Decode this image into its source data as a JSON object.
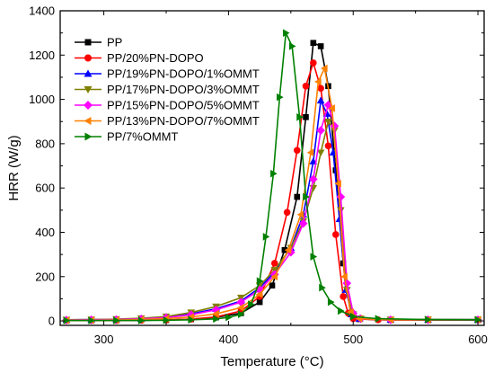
{
  "chart_data": {
    "type": "line",
    "title": "",
    "xlabel": "Temperature (°C)",
    "ylabel": "HRR (W/g)",
    "xlim": [
      265,
      605
    ],
    "ylim": [
      -20,
      1400
    ],
    "xticks": [
      300,
      400,
      500,
      600
    ],
    "yticks": [
      0,
      200,
      400,
      600,
      800,
      1000,
      1200,
      1400
    ],
    "grid": false,
    "legend_position": "top-left",
    "series": [
      {
        "name": "PP",
        "color": "#000000",
        "marker": "square",
        "points": [
          [
            270,
            3
          ],
          [
            290,
            3
          ],
          [
            310,
            3
          ],
          [
            330,
            3
          ],
          [
            350,
            4
          ],
          [
            370,
            8
          ],
          [
            390,
            16
          ],
          [
            410,
            35
          ],
          [
            425,
            85
          ],
          [
            435,
            160
          ],
          [
            445,
            320
          ],
          [
            455,
            560
          ],
          [
            462,
            920
          ],
          [
            468,
            1255
          ],
          [
            474,
            1240
          ],
          [
            480,
            1060
          ],
          [
            486,
            680
          ],
          [
            492,
            260
          ],
          [
            498,
            30
          ],
          [
            505,
            8
          ],
          [
            530,
            4
          ],
          [
            560,
            4
          ],
          [
            600,
            4
          ]
        ]
      },
      {
        "name": "PP/20%PN-DOPO",
        "color": "#ff0000",
        "marker": "circle",
        "points": [
          [
            270,
            2
          ],
          [
            290,
            2
          ],
          [
            310,
            2
          ],
          [
            330,
            3
          ],
          [
            350,
            4
          ],
          [
            370,
            8
          ],
          [
            390,
            18
          ],
          [
            410,
            45
          ],
          [
            425,
            110
          ],
          [
            437,
            260
          ],
          [
            447,
            490
          ],
          [
            455,
            770
          ],
          [
            462,
            1060
          ],
          [
            468,
            1165
          ],
          [
            474,
            1050
          ],
          [
            480,
            790
          ],
          [
            486,
            390
          ],
          [
            492,
            110
          ],
          [
            496,
            35
          ],
          [
            500,
            10
          ],
          [
            520,
            5
          ],
          [
            560,
            5
          ],
          [
            600,
            5
          ]
        ]
      },
      {
        "name": "PP/19%PN-DOPO/1%OMMT",
        "color": "#0000ff",
        "marker": "triangle-up",
        "points": [
          [
            270,
            5
          ],
          [
            290,
            6
          ],
          [
            310,
            7
          ],
          [
            330,
            10
          ],
          [
            350,
            18
          ],
          [
            370,
            32
          ],
          [
            390,
            55
          ],
          [
            410,
            90
          ],
          [
            425,
            150
          ],
          [
            437,
            220
          ],
          [
            450,
            330
          ],
          [
            460,
            480
          ],
          [
            468,
            720
          ],
          [
            474,
            995
          ],
          [
            479,
            935
          ],
          [
            484,
            760
          ],
          [
            489,
            460
          ],
          [
            494,
            140
          ],
          [
            499,
            30
          ],
          [
            505,
            10
          ],
          [
            530,
            6
          ],
          [
            560,
            6
          ],
          [
            600,
            6
          ]
        ]
      },
      {
        "name": "PP/17%PN-DOPO/3%OMMT",
        "color": "#808000",
        "marker": "triangle-down",
        "points": [
          [
            270,
            5
          ],
          [
            290,
            6
          ],
          [
            310,
            8
          ],
          [
            330,
            12
          ],
          [
            350,
            20
          ],
          [
            370,
            38
          ],
          [
            390,
            65
          ],
          [
            410,
            105
          ],
          [
            425,
            160
          ],
          [
            437,
            230
          ],
          [
            450,
            330
          ],
          [
            460,
            450
          ],
          [
            468,
            600
          ],
          [
            474,
            760
          ],
          [
            480,
            900
          ],
          [
            485,
            860
          ],
          [
            490,
            500
          ],
          [
            495,
            140
          ],
          [
            500,
            30
          ],
          [
            506,
            10
          ],
          [
            530,
            6
          ],
          [
            560,
            6
          ],
          [
            600,
            6
          ]
        ]
      },
      {
        "name": "PP/15%PN-DOPO/5%OMMT",
        "color": "#ff00ff",
        "marker": "diamond",
        "points": [
          [
            270,
            4
          ],
          [
            290,
            5
          ],
          [
            310,
            6
          ],
          [
            330,
            9
          ],
          [
            350,
            15
          ],
          [
            370,
            28
          ],
          [
            390,
            50
          ],
          [
            410,
            85
          ],
          [
            425,
            140
          ],
          [
            437,
            210
          ],
          [
            450,
            310
          ],
          [
            460,
            440
          ],
          [
            468,
            640
          ],
          [
            474,
            860
          ],
          [
            480,
            975
          ],
          [
            485,
            880
          ],
          [
            490,
            560
          ],
          [
            495,
            170
          ],
          [
            500,
            35
          ],
          [
            506,
            10
          ],
          [
            530,
            5
          ],
          [
            560,
            5
          ],
          [
            600,
            5
          ]
        ]
      },
      {
        "name": "PP/13%PN-DOPO/7%OMMT",
        "color": "#ff8000",
        "marker": "triangle-left",
        "points": [
          [
            270,
            3
          ],
          [
            290,
            3
          ],
          [
            310,
            4
          ],
          [
            330,
            6
          ],
          [
            350,
            10
          ],
          [
            370,
            18
          ],
          [
            390,
            32
          ],
          [
            410,
            60
          ],
          [
            425,
            120
          ],
          [
            437,
            200
          ],
          [
            448,
            320
          ],
          [
            458,
            480
          ],
          [
            466,
            760
          ],
          [
            472,
            1080
          ],
          [
            477,
            1140
          ],
          [
            483,
            960
          ],
          [
            488,
            620
          ],
          [
            493,
            200
          ],
          [
            498,
            40
          ],
          [
            505,
            10
          ],
          [
            530,
            5
          ],
          [
            560,
            5
          ],
          [
            600,
            5
          ]
        ]
      },
      {
        "name": "PP/7%OMMT",
        "color": "#008000",
        "marker": "triangle-right",
        "points": [
          [
            270,
            2
          ],
          [
            290,
            2
          ],
          [
            310,
            2
          ],
          [
            330,
            2
          ],
          [
            350,
            3
          ],
          [
            370,
            5
          ],
          [
            390,
            9
          ],
          [
            400,
            16
          ],
          [
            410,
            30
          ],
          [
            418,
            75
          ],
          [
            425,
            180
          ],
          [
            430,
            380
          ],
          [
            436,
            665
          ],
          [
            441,
            1010
          ],
          [
            446,
            1300
          ],
          [
            451,
            1240
          ],
          [
            457,
            920
          ],
          [
            462,
            560
          ],
          [
            468,
            290
          ],
          [
            475,
            150
          ],
          [
            482,
            85
          ],
          [
            490,
            45
          ],
          [
            500,
            20
          ],
          [
            520,
            10
          ],
          [
            560,
            6
          ],
          [
            600,
            5
          ]
        ]
      }
    ]
  }
}
